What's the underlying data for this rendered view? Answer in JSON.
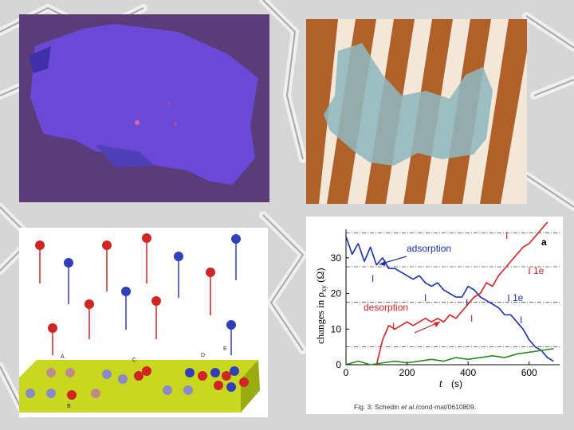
{
  "panels": {
    "optical": {
      "background": "#5a3c78",
      "flake_color": "#6a48d8"
    },
    "tem": {
      "background": "#b0612a",
      "stripe_color": "#f3e7d8",
      "flake_color": "#8fb7bd"
    },
    "schematic": {
      "labels": [
        "A",
        "B",
        "C",
        "D",
        "E"
      ],
      "red_atom": "#d02525",
      "blue_atom": "#3040b8",
      "surface": "#c8d820"
    }
  },
  "chart_data": {
    "type": "line",
    "panel_label": "a",
    "ylabel": "changes in ρ",
    "ylabel_subscript": "xy",
    "ylabel_unit": "(Ω)",
    "xlabel": "t",
    "xlabel_unit": "(s)",
    "xlim": [
      0,
      700
    ],
    "ylim": [
      0,
      38
    ],
    "xticks": [
      "0",
      "200",
      "400",
      "600"
    ],
    "yticks": [
      "0",
      "10",
      "20",
      "30"
    ],
    "gridlines_y": [
      5,
      17.5,
      27.5,
      37
    ],
    "series": [
      {
        "name": "adsorption",
        "color": "#1a2fb0",
        "x": [
          0,
          20,
          40,
          60,
          80,
          100,
          120,
          140,
          160,
          180,
          200,
          220,
          240,
          260,
          280,
          300,
          320,
          340,
          360,
          380,
          400,
          420,
          440,
          460,
          480,
          500,
          520,
          540,
          560,
          580,
          600,
          620,
          640,
          660,
          680
        ],
        "y": [
          36,
          31,
          34,
          29,
          33,
          28,
          30,
          27,
          27,
          26,
          25,
          24,
          25,
          23,
          22,
          23,
          21,
          20,
          19,
          19,
          22,
          21,
          19,
          18,
          17,
          16,
          14,
          14,
          12,
          10,
          7,
          5,
          4,
          2,
          1
        ]
      },
      {
        "name": "desorption",
        "color": "#d82020",
        "x": [
          100,
          120,
          140,
          160,
          180,
          200,
          220,
          240,
          260,
          280,
          300,
          320,
          340,
          360,
          380,
          400,
          420,
          440,
          460,
          480,
          500,
          520,
          540,
          560,
          580,
          600,
          620,
          640,
          660
        ],
        "y": [
          0,
          7,
          11,
          10,
          11,
          12,
          11,
          12,
          13,
          12,
          13,
          12,
          14,
          13,
          15,
          17,
          19,
          20,
          23,
          22,
          25,
          27,
          29,
          31,
          33,
          34,
          36,
          38,
          40
        ]
      },
      {
        "name": "",
        "color": "#2a8a20",
        "x": [
          0,
          40,
          80,
          120,
          160,
          200,
          240,
          280,
          320,
          360,
          400,
          440,
          480,
          520,
          560,
          600,
          640,
          680
        ],
        "y": [
          0,
          1,
          0,
          0.5,
          1,
          0.5,
          1,
          1.5,
          1,
          2,
          1.5,
          2,
          2.5,
          2,
          3,
          3.5,
          4,
          4.5
        ]
      }
    ],
    "annotations": {
      "adsorption": "adsorption",
      "desorption": "desorption",
      "one_e_a": "1e",
      "one_e_b": "1e",
      "step_marker": "I"
    },
    "caption_prefix": "Fig. 3:  Schedin ",
    "caption_et_al": "et al.",
    "caption_suffix": "/cond-mat/0610809."
  }
}
